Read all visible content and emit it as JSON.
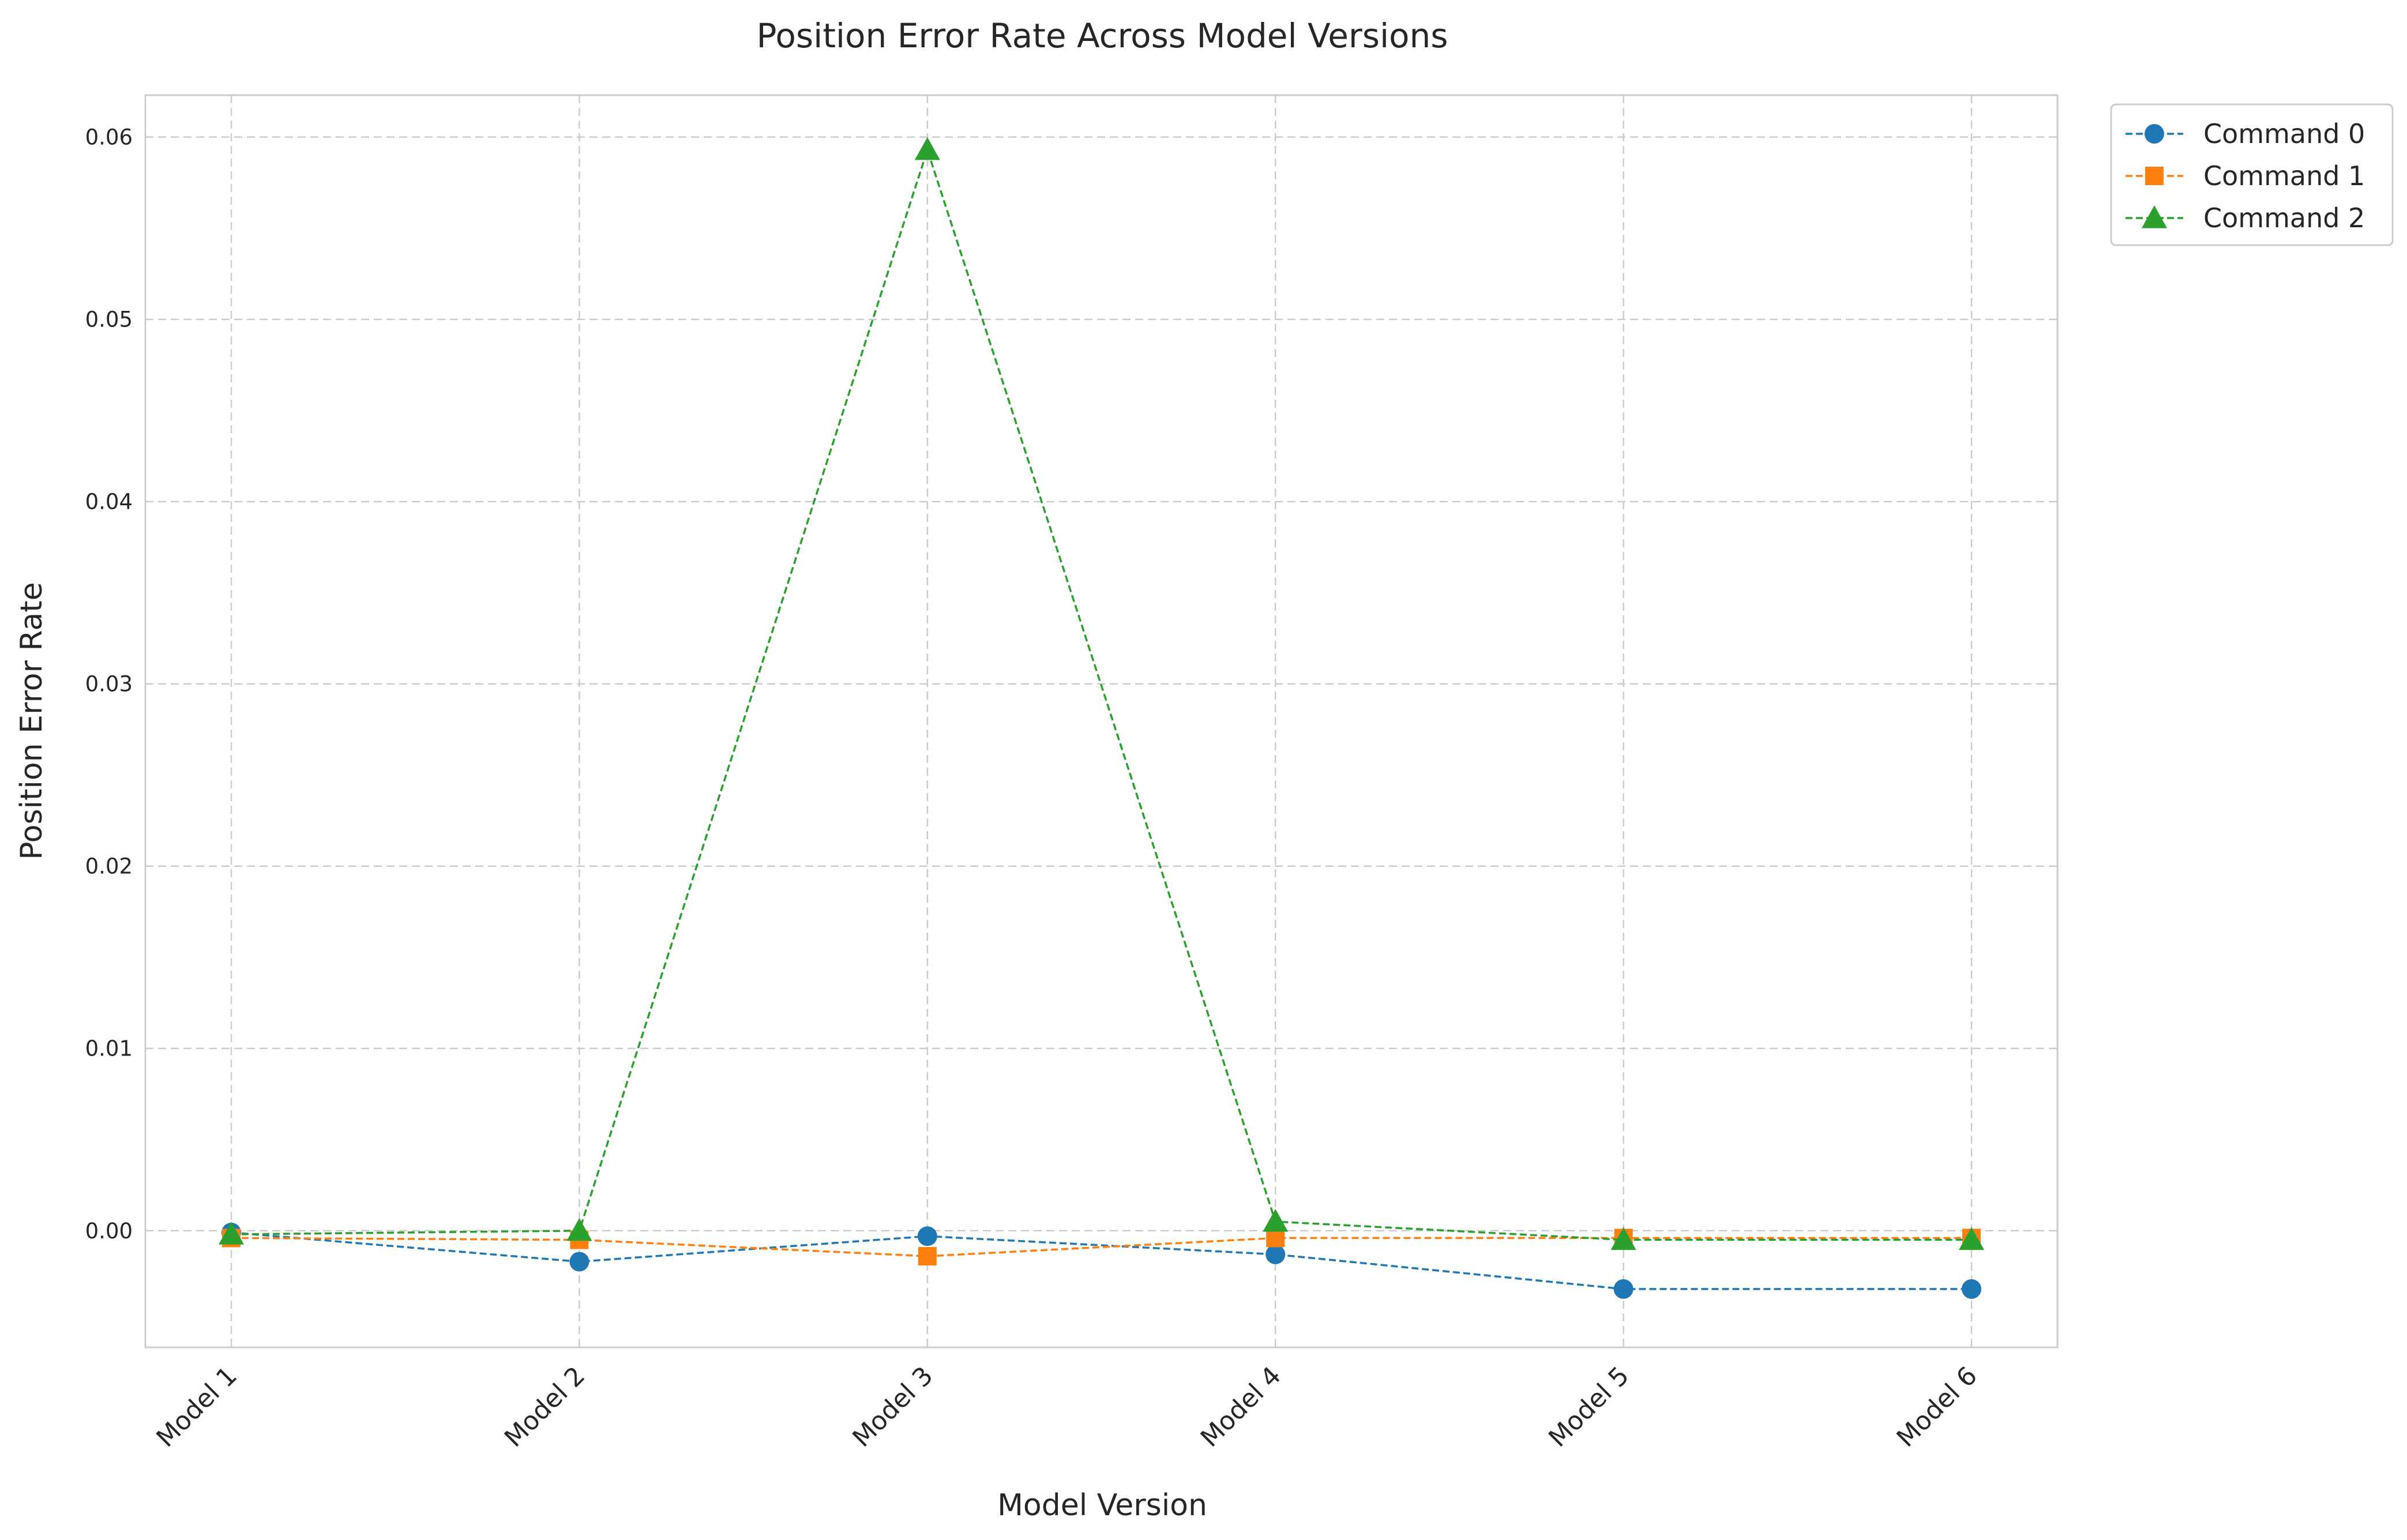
{
  "chart_data": {
    "type": "line",
    "title": "Position Error Rate Across Model Versions",
    "xlabel": "Model Version",
    "ylabel": "Position Error Rate",
    "categories": [
      "Model 1",
      "Model 2",
      "Model 3",
      "Model 4",
      "Model 5",
      "Model 6"
    ],
    "ylim": [
      -0.0064,
      0.0623
    ],
    "yticks": [
      0.0,
      0.01,
      0.02,
      0.03,
      0.04,
      0.05,
      0.06
    ],
    "ytick_labels": [
      "0.00",
      "0.01",
      "0.02",
      "0.03",
      "0.04",
      "0.05",
      "0.06"
    ],
    "grid": true,
    "legend_position": "outside top-right",
    "series": [
      {
        "name": "Command 0",
        "color": "#1f77b4",
        "marker": "circle",
        "line_style": "dashed",
        "values": [
          -0.0001,
          -0.0017,
          -0.0003,
          -0.0013,
          -0.0032,
          -0.0032
        ]
      },
      {
        "name": "Command 1",
        "color": "#ff7f0e",
        "marker": "square",
        "line_style": "dashed",
        "values": [
          -0.0004,
          -0.0005,
          -0.0014,
          -0.0004,
          -0.0004,
          -0.0004
        ]
      },
      {
        "name": "Command 2",
        "color": "#2ca02c",
        "marker": "triangle",
        "line_style": "dashed",
        "values": [
          -0.0002,
          0.0,
          0.0593,
          0.0005,
          -0.0005,
          -0.0005
        ]
      }
    ]
  }
}
